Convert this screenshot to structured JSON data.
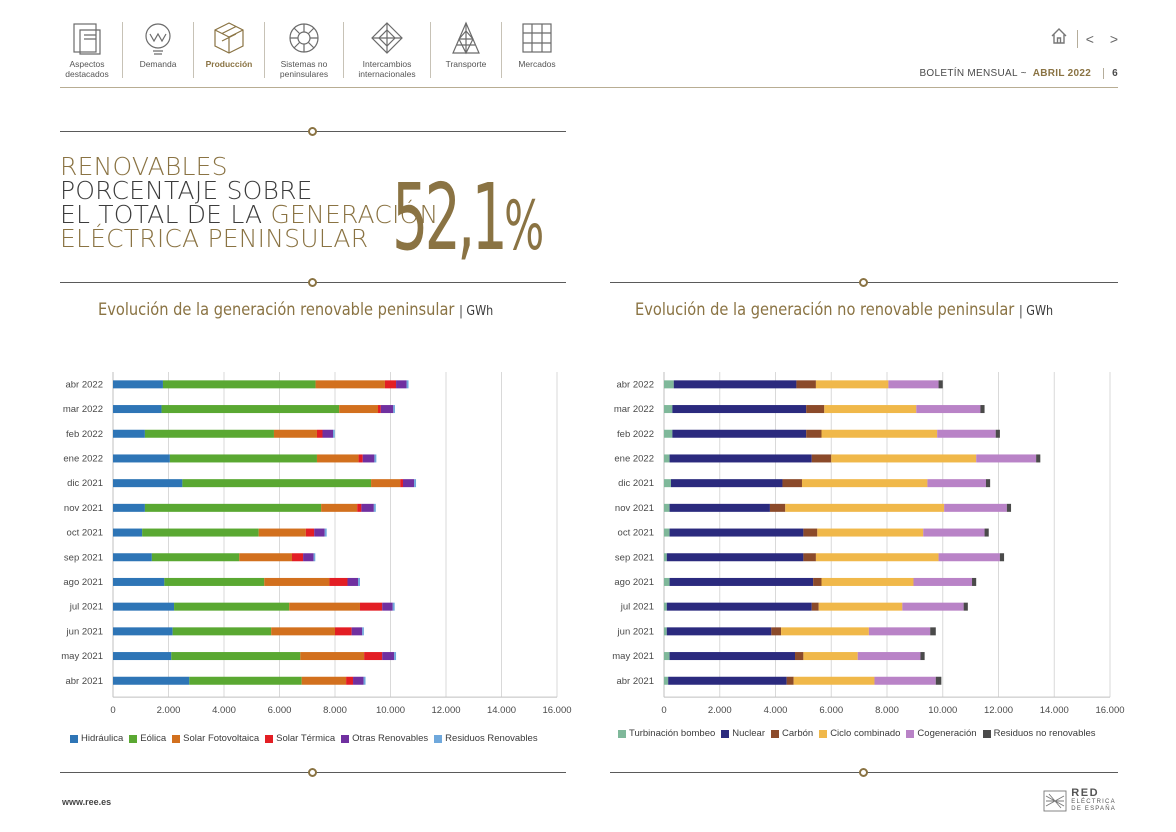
{
  "nav": [
    {
      "label": "Aspectos\ndestacados",
      "icon": "document-icon"
    },
    {
      "label": "Demanda",
      "icon": "bulb-icon"
    },
    {
      "label": "Producción",
      "icon": "cube-icon",
      "active": true
    },
    {
      "label": "Sistemas no\npeninsulares",
      "icon": "wheel-icon"
    },
    {
      "label": "Intercambios\ninternacionales",
      "icon": "network-icon"
    },
    {
      "label": "Transporte",
      "icon": "tower-icon"
    },
    {
      "label": "Mercados",
      "icon": "grid-icon"
    }
  ],
  "header": {
    "bulletin": "BOLETÍN MENSUAL ~",
    "month": "ABRIL 2022",
    "page": "6",
    "nav_arrows": "< >"
  },
  "kpi": {
    "line1": "RENOVABLES",
    "line2": "PORCENTAJE SOBRE",
    "line3a": "EL TOTAL DE LA ",
    "line3b": "GENERACIÓN",
    "line4": "ELÉCTRICA PENINSULAR",
    "value": "52,1",
    "unit": "%"
  },
  "chart_left_title": {
    "main": "Evolución de la generación renovable peninsular",
    "unit": "| GWh"
  },
  "chart_right_title": {
    "main": "Evolución de la generación no renovable peninsular",
    "unit": "| GWh"
  },
  "footer": {
    "url": "www.ree.es",
    "logo_line1": "RED",
    "logo_line2": "ELÉCTRICA",
    "logo_line3": "DE ESPAÑA"
  },
  "chart_data": [
    {
      "type": "bar",
      "orientation": "horizontal",
      "stacked": true,
      "categories": [
        "abr 2022",
        "mar 2022",
        "feb 2022",
        "ene 2022",
        "dic 2021",
        "nov 2021",
        "oct 2021",
        "sep 2021",
        "ago 2021",
        "jul 2021",
        "jun 2021",
        "may 2021",
        "abr 2021"
      ],
      "xlim": [
        0,
        16000
      ],
      "xticks": [
        "0",
        "2.000",
        "4.000",
        "6.000",
        "8.000",
        "10.000",
        "12.000",
        "14.000",
        "16.000"
      ],
      "grid": true,
      "legend_position": "bottom",
      "series": [
        {
          "name": "Hidráulica",
          "color": "#2e75b6",
          "values": [
            1800,
            1750,
            1150,
            2050,
            2500,
            1150,
            1050,
            1400,
            1850,
            2200,
            2150,
            2100,
            2750
          ]
        },
        {
          "name": "Eólica",
          "color": "#5aa832",
          "values": [
            5500,
            6400,
            4650,
            5300,
            6800,
            6350,
            4200,
            3150,
            3600,
            4150,
            3550,
            4650,
            4050
          ]
        },
        {
          "name": "Solar Fotovoltaica",
          "color": "#d2701e",
          "values": [
            2500,
            1400,
            1550,
            1500,
            1050,
            1300,
            1700,
            1900,
            2350,
            2550,
            2300,
            2300,
            1600
          ]
        },
        {
          "name": "Solar Térmica",
          "color": "#e31e24",
          "values": [
            400,
            100,
            200,
            150,
            100,
            150,
            300,
            400,
            650,
            800,
            600,
            650,
            250
          ]
        },
        {
          "name": "Otras Renovables",
          "color": "#7030a0",
          "values": [
            380,
            450,
            380,
            420,
            400,
            450,
            380,
            380,
            380,
            380,
            380,
            430,
            380
          ]
        },
        {
          "name": "Residuos Renovables",
          "color": "#6fa8dc",
          "values": [
            70,
            60,
            60,
            70,
            70,
            70,
            70,
            60,
            70,
            70,
            60,
            70,
            70
          ]
        }
      ]
    },
    {
      "type": "bar",
      "orientation": "horizontal",
      "stacked": true,
      "categories": [
        "abr 2022",
        "mar 2022",
        "feb 2022",
        "ene 2022",
        "dic 2021",
        "nov 2021",
        "oct 2021",
        "sep 2021",
        "ago 2021",
        "jul 2021",
        "jun 2021",
        "may 2021",
        "abr 2021"
      ],
      "xlim": [
        0,
        16000
      ],
      "xticks": [
        "0",
        "2.000",
        "4.000",
        "6.000",
        "8.000",
        "10.000",
        "12.000",
        "14.000",
        "16.000"
      ],
      "grid": true,
      "legend_position": "bottom",
      "series": [
        {
          "name": "Turbinación bombeo",
          "color": "#7fb89a",
          "values": [
            350,
            300,
            300,
            200,
            250,
            200,
            200,
            100,
            200,
            100,
            100,
            200,
            150
          ]
        },
        {
          "name": "Nuclear",
          "color": "#2b2a7e",
          "values": [
            4400,
            4800,
            4800,
            5100,
            4000,
            3600,
            4800,
            4900,
            5150,
            5200,
            3750,
            4500,
            4250
          ]
        },
        {
          "name": "Carbón",
          "color": "#8b4a2a",
          "values": [
            700,
            650,
            550,
            700,
            700,
            550,
            500,
            450,
            300,
            250,
            350,
            300,
            250
          ]
        },
        {
          "name": "Ciclo combinado",
          "color": "#f0b84a",
          "values": [
            2600,
            3300,
            4150,
            5200,
            4500,
            5700,
            3800,
            4400,
            3300,
            3000,
            3150,
            1950,
            2900
          ]
        },
        {
          "name": "Cogeneración",
          "color": "#b983c7",
          "values": [
            1800,
            2300,
            2100,
            2150,
            2100,
            2250,
            2200,
            2200,
            2100,
            2200,
            2200,
            2250,
            2200
          ]
        },
        {
          "name": "Residuos no renovables",
          "color": "#4a4a4a",
          "values": [
            150,
            150,
            150,
            150,
            150,
            150,
            150,
            150,
            150,
            150,
            200,
            150,
            200
          ]
        }
      ]
    }
  ]
}
